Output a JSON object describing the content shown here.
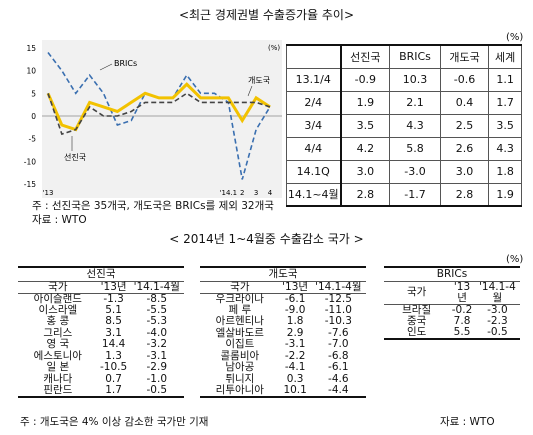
{
  "title_main": "<최근 경제권별 수출증가율 추이>",
  "unit_top": "(%)",
  "chart_data": {
    "type": "line",
    "unit": "(%)",
    "ylim": [
      -15,
      15
    ],
    "yticks": [
      "15",
      "10",
      "5",
      "0",
      "-5",
      "-10",
      "-15"
    ],
    "xticks_left": "'13",
    "xticks_right": [
      "'14.1",
      "2",
      "3",
      "4"
    ],
    "x": [
      0,
      1,
      2,
      3,
      4,
      5,
      6,
      7,
      8,
      9,
      10,
      11,
      12,
      13,
      14,
      15,
      16
    ],
    "series": [
      {
        "name": "BRICs",
        "values": [
          14,
          10,
          5,
          9,
          5,
          -2,
          -1,
          5,
          4,
          4,
          9,
          5,
          5,
          3,
          -14,
          -3,
          2
        ],
        "color": "#3a6fb0",
        "style": "dashed"
      },
      {
        "name": "개도국",
        "values": [
          5,
          -2,
          -3,
          3,
          2,
          1,
          3,
          5,
          4,
          4,
          7,
          4,
          4,
          4,
          -1,
          4,
          2
        ],
        "color": "#f2c200",
        "style": "solid"
      },
      {
        "name": "선진국",
        "values": [
          5,
          -4,
          -3,
          2,
          0,
          0,
          1,
          3,
          3,
          3,
          5,
          3,
          3,
          3,
          3,
          3,
          2
        ],
        "color": "#444444",
        "style": "dashed"
      }
    ],
    "labels": {
      "brics": "BRICs",
      "dev": "개도국",
      "adv": "선진국"
    }
  },
  "world_table": {
    "headers": [
      "",
      "선진국",
      "BRICs",
      "개도국",
      "세계"
    ],
    "rows": [
      [
        "13.1/4",
        "-0.9",
        "10.3",
        "-0.6",
        "1.1"
      ],
      [
        "2/4",
        "1.9",
        "2.1",
        "0.4",
        "1.7"
      ],
      [
        "3/4",
        "3.5",
        "4.3",
        "2.5",
        "3.5"
      ],
      [
        "4/4",
        "4.2",
        "5.8",
        "2.6",
        "4.3"
      ],
      [
        "14.1Q",
        "3.0",
        "-3.0",
        "3.0",
        "1.8"
      ],
      [
        "14.1~4월",
        "2.8",
        "-1.7",
        "2.8",
        "1.9"
      ]
    ]
  },
  "note1": "주 : 선진국은 35개국, 개도국은 BRICs를 제외 32개국",
  "note2": "자료 : WTO",
  "title_second": "< 2014년 1~4월중 수출감소 국가 >",
  "unit_bottom": "(%)",
  "advanced": {
    "group": "선진국",
    "headers": [
      "국가",
      "'13년",
      "'14.1-4월"
    ],
    "rows": [
      [
        "아이슬랜드",
        "-1.3",
        "-8.5"
      ],
      [
        "이스라엘",
        "5.1",
        "-5.5"
      ],
      [
        "홍  콩",
        "8.5",
        "-5.3"
      ],
      [
        "그리스",
        "3.1",
        "-4.0"
      ],
      [
        "영  국",
        "14.4",
        "-3.2"
      ],
      [
        "에스토니아",
        "1.3",
        "-3.1"
      ],
      [
        "일  본",
        "-10.5",
        "-2.9"
      ],
      [
        "캐나다",
        "0.7",
        "-1.0"
      ],
      [
        "핀란드",
        "1.7",
        "-0.5"
      ]
    ]
  },
  "developing": {
    "group": "개도국",
    "headers": [
      "국가",
      "'13년",
      "'14.1-4월"
    ],
    "rows": [
      [
        "우크라이나",
        "-6.1",
        "-12.5"
      ],
      [
        "페  루",
        "-9.0",
        "-11.0"
      ],
      [
        "아르헨티나",
        "1.8",
        "-10.3"
      ],
      [
        "엘살바도르",
        "2.9",
        "-7.6"
      ],
      [
        "이집트",
        "-3.1",
        "-7.0"
      ],
      [
        "콜롬비아",
        "-2.2",
        "-6.8"
      ],
      [
        "남아공",
        "-4.1",
        "-6.1"
      ],
      [
        "튀니지",
        "0.3",
        "-4.6"
      ],
      [
        "리투아니아",
        "10.1",
        "-4.4"
      ]
    ]
  },
  "brics": {
    "group": "BRICs",
    "headers": [
      "국가",
      "'13년",
      "'14.1-4월"
    ],
    "rows": [
      [
        "브라질",
        "-0.2",
        "-3.0"
      ],
      [
        "중국",
        "7.8",
        "-2.3"
      ],
      [
        "인도",
        "5.5",
        "-0.5"
      ]
    ]
  },
  "note_bottom": "주 : 개도국은 4% 이상 감소한 국가만 기재",
  "source_bottom": "자료 : WTO"
}
